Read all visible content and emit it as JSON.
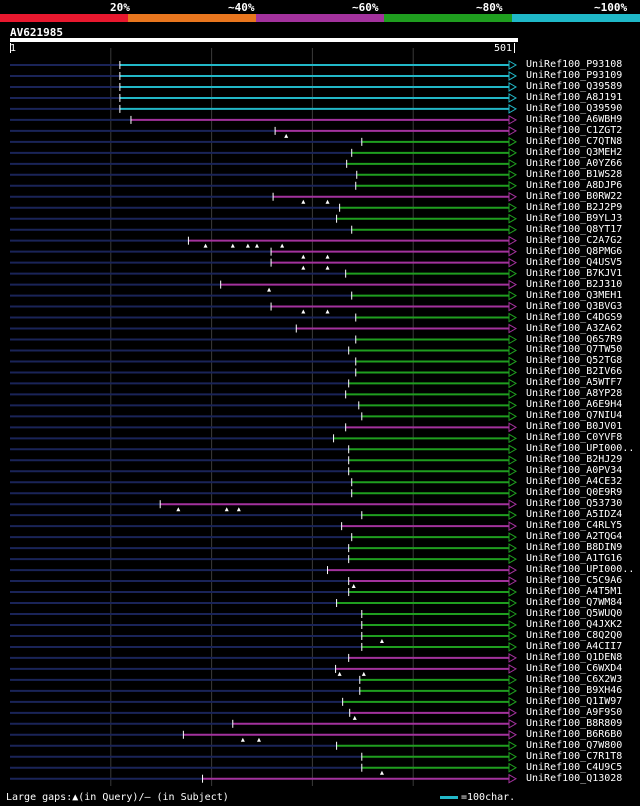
{
  "legend": [
    {
      "label": "20%",
      "color": "#e8182e"
    },
    {
      "label": "~40%",
      "color": "#e8761e"
    },
    {
      "label": "~60%",
      "color": "#a3329d"
    },
    {
      "label": "~80%",
      "color": "#1f9e1f"
    },
    {
      "label": "~100%",
      "color": "#1fb8c8"
    }
  ],
  "query": {
    "name": "AV621985",
    "start": "1",
    "end": "501",
    "length": 501
  },
  "footer": {
    "gaps_text": "Large gaps:▲(in Query)/– (in Subject)",
    "scale_text": "=100char."
  },
  "hits": [
    {
      "label": "UniRef100_P93108",
      "start": 110,
      "color": "cyan",
      "gaps": []
    },
    {
      "label": "UniRef100_P93109",
      "start": 110,
      "color": "cyan",
      "gaps": []
    },
    {
      "label": "UniRef100_Q39589",
      "start": 110,
      "color": "cyan",
      "gaps": []
    },
    {
      "label": "UniRef100_A8J191",
      "start": 110,
      "color": "cyan",
      "gaps": []
    },
    {
      "label": "UniRef100_Q39590",
      "start": 110,
      "color": "cyan",
      "gaps": []
    },
    {
      "label": "UniRef100_A6WBH9",
      "start": 121,
      "color": "purple",
      "gaps": []
    },
    {
      "label": "UniRef100_C1ZGT2",
      "start": 264,
      "color": "purple",
      "gaps": [
        275
      ]
    },
    {
      "label": "UniRef100_C7QTN8",
      "start": 350,
      "color": "green",
      "gaps": []
    },
    {
      "label": "UniRef100_Q3MEH2",
      "start": 340,
      "color": "green",
      "gaps": []
    },
    {
      "label": "UniRef100_A0YZ66",
      "start": 335,
      "color": "green",
      "gaps": []
    },
    {
      "label": "UniRef100_B1WS28",
      "start": 345,
      "color": "green",
      "gaps": []
    },
    {
      "label": "UniRef100_A8DJP6",
      "start": 344,
      "color": "green",
      "gaps": []
    },
    {
      "label": "UniRef100_B0RW22",
      "start": 262,
      "color": "purple",
      "gaps": [
        292,
        316
      ]
    },
    {
      "label": "UniRef100_B2J2P9",
      "start": 328,
      "color": "green",
      "gaps": []
    },
    {
      "label": "UniRef100_B9YLJ3",
      "start": 325,
      "color": "green",
      "gaps": []
    },
    {
      "label": "UniRef100_Q8YT17",
      "start": 340,
      "color": "green",
      "gaps": []
    },
    {
      "label": "UniRef100_C2A7G2",
      "start": 178,
      "color": "purple",
      "gaps": [
        195,
        222,
        237,
        246,
        271
      ]
    },
    {
      "label": "UniRef100_Q8PMG6",
      "start": 260,
      "color": "purple",
      "gaps": [
        292,
        316
      ]
    },
    {
      "label": "UniRef100_Q4USV5",
      "start": 260,
      "color": "purple",
      "gaps": [
        292,
        316
      ]
    },
    {
      "label": "UniRef100_B7KJV1",
      "start": 334,
      "color": "green",
      "gaps": []
    },
    {
      "label": "UniRef100_B2J310",
      "start": 210,
      "color": "purple",
      "gaps": [
        258
      ]
    },
    {
      "label": "UniRef100_Q3MEH1",
      "start": 340,
      "color": "green",
      "gaps": []
    },
    {
      "label": "UniRef100_Q3BVG3",
      "start": 260,
      "color": "purple",
      "gaps": [
        292,
        316
      ]
    },
    {
      "label": "UniRef100_C4DGS9",
      "start": 344,
      "color": "green",
      "gaps": []
    },
    {
      "label": "UniRef100_A3ZA62",
      "start": 285,
      "color": "purple",
      "gaps": []
    },
    {
      "label": "UniRef100_Q6S7R9",
      "start": 344,
      "color": "green",
      "gaps": []
    },
    {
      "label": "UniRef100_Q7TW50",
      "start": 337,
      "color": "green",
      "gaps": []
    },
    {
      "label": "UniRef100_Q52TG8",
      "start": 344,
      "color": "green",
      "gaps": []
    },
    {
      "label": "UniRef100_B2IV66",
      "start": 344,
      "color": "green",
      "gaps": []
    },
    {
      "label": "UniRef100_A5WTF7",
      "start": 337,
      "color": "green",
      "gaps": []
    },
    {
      "label": "UniRef100_A8YP28",
      "start": 334,
      "color": "green",
      "gaps": []
    },
    {
      "label": "UniRef100_A6E9H4",
      "start": 347,
      "color": "green",
      "gaps": []
    },
    {
      "label": "UniRef100_Q7NIU4",
      "start": 350,
      "color": "green",
      "gaps": []
    },
    {
      "label": "UniRef100_B0JV01",
      "start": 334,
      "color": "purple",
      "gaps": []
    },
    {
      "label": "UniRef100_C0YVF8",
      "start": 322,
      "color": "green",
      "gaps": []
    },
    {
      "label": "UniRef100_UPI000..",
      "start": 337,
      "color": "green",
      "gaps": []
    },
    {
      "label": "UniRef100_B2HJ29",
      "start": 337,
      "color": "green",
      "gaps": []
    },
    {
      "label": "UniRef100_A0PV34",
      "start": 337,
      "color": "green",
      "gaps": []
    },
    {
      "label": "UniRef100_A4CE32",
      "start": 340,
      "color": "green",
      "gaps": []
    },
    {
      "label": "UniRef100_Q0E9R9",
      "start": 340,
      "color": "green",
      "gaps": []
    },
    {
      "label": "UniRef100_Q53730",
      "start": 150,
      "color": "purple",
      "gaps": [
        168,
        216,
        228
      ]
    },
    {
      "label": "UniRef100_A5IDZ4",
      "start": 350,
      "color": "green",
      "gaps": []
    },
    {
      "label": "UniRef100_C4RLY5",
      "start": 330,
      "color": "purple",
      "gaps": []
    },
    {
      "label": "UniRef100_A2TQG4",
      "start": 340,
      "color": "green",
      "gaps": []
    },
    {
      "label": "UniRef100_B8DIN9",
      "start": 337,
      "color": "green",
      "gaps": []
    },
    {
      "label": "UniRef100_A1TG16",
      "start": 337,
      "color": "green",
      "gaps": []
    },
    {
      "label": "UniRef100_UPI000..",
      "start": 316,
      "color": "purple",
      "gaps": []
    },
    {
      "label": "UniRef100_C5C9A6",
      "start": 337,
      "color": "purple",
      "gaps": [
        342
      ]
    },
    {
      "label": "UniRef100_A4T5M1",
      "start": 337,
      "color": "green",
      "gaps": []
    },
    {
      "label": "UniRef100_Q7WM84",
      "start": 325,
      "color": "green",
      "gaps": []
    },
    {
      "label": "UniRef100_Q5WUQ0",
      "start": 350,
      "color": "green",
      "gaps": []
    },
    {
      "label": "UniRef100_Q4JXK2",
      "start": 350,
      "color": "green",
      "gaps": []
    },
    {
      "label": "UniRef100_C8Q2Q0",
      "start": 350,
      "color": "green",
      "gaps": [
        370
      ]
    },
    {
      "label": "UniRef100_A4CII7",
      "start": 350,
      "color": "green",
      "gaps": []
    },
    {
      "label": "UniRef100_Q1DEN8",
      "start": 337,
      "color": "purple",
      "gaps": []
    },
    {
      "label": "UniRef100_C6WXD4",
      "start": 324,
      "color": "purple",
      "gaps": [
        328,
        352
      ]
    },
    {
      "label": "UniRef100_C6X2W3",
      "start": 348,
      "color": "green",
      "gaps": []
    },
    {
      "label": "UniRef100_B9XH46",
      "start": 348,
      "color": "green",
      "gaps": []
    },
    {
      "label": "UniRef100_Q1IW97",
      "start": 331,
      "color": "green",
      "gaps": []
    },
    {
      "label": "UniRef100_A9F9S0",
      "start": 338,
      "color": "purple",
      "gaps": [
        343
      ]
    },
    {
      "label": "UniRef100_B8R809",
      "start": 222,
      "color": "purple",
      "gaps": []
    },
    {
      "label": "UniRef100_B6R6B0",
      "start": 173,
      "color": "purple",
      "gaps": [
        232,
        248
      ]
    },
    {
      "label": "UniRef100_Q7W800",
      "start": 325,
      "color": "green",
      "gaps": []
    },
    {
      "label": "UniRef100_C7R1T8",
      "start": 350,
      "color": "green",
      "gaps": []
    },
    {
      "label": "UniRef100_C4U9C5",
      "start": 350,
      "color": "green",
      "gaps": [
        370
      ]
    },
    {
      "label": "UniRef100_Q13028",
      "start": 192,
      "color": "purple",
      "gaps": []
    }
  ]
}
